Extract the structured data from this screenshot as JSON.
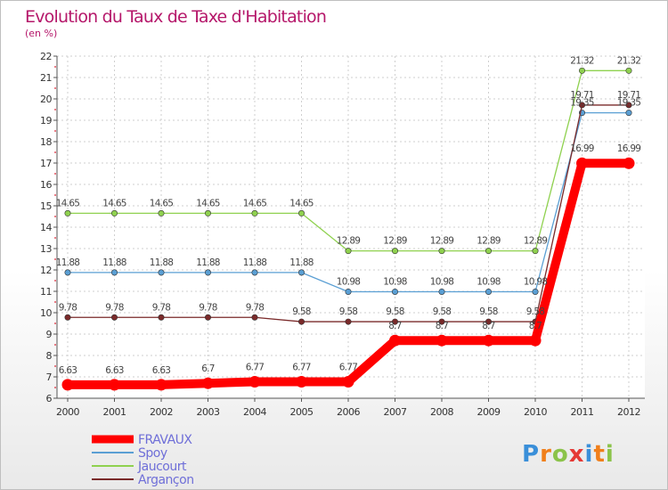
{
  "chart_data": {
    "type": "line",
    "title": "Evolution du Taux de Taxe d'Habitation",
    "subtitle": "(en %)",
    "x": [
      "2000",
      "2001",
      "2002",
      "2003",
      "2004",
      "2005",
      "2006",
      "2007",
      "2008",
      "2009",
      "2010",
      "2011",
      "2012"
    ],
    "ylim": [
      6,
      22
    ],
    "yticks": [
      6,
      7,
      8,
      9,
      10,
      11,
      12,
      13,
      14,
      15,
      16,
      17,
      18,
      19,
      20,
      21,
      22
    ],
    "grid": true,
    "legend_position": "bottom-left",
    "series": [
      {
        "name": "FRAVAUX",
        "color": "#ff0000",
        "values": [
          6.63,
          6.63,
          6.63,
          6.7,
          6.77,
          6.77,
          6.77,
          8.7,
          8.7,
          8.7,
          8.7,
          16.99,
          16.99
        ]
      },
      {
        "name": "Spoy",
        "color": "#5a9fd4",
        "values": [
          11.88,
          11.88,
          11.88,
          11.88,
          11.88,
          11.88,
          10.98,
          10.98,
          10.98,
          10.98,
          10.98,
          19.35,
          19.35
        ]
      },
      {
        "name": "Jaucourt",
        "color": "#8fd14f",
        "values": [
          14.65,
          14.65,
          14.65,
          14.65,
          14.65,
          14.65,
          12.89,
          12.89,
          12.89,
          12.89,
          12.89,
          21.32,
          21.32
        ]
      },
      {
        "name": "Argançon",
        "color": "#7a2a2a",
        "values": [
          9.78,
          9.78,
          9.78,
          9.78,
          9.78,
          9.58,
          9.58,
          9.58,
          9.58,
          9.58,
          9.58,
          19.71,
          19.71
        ]
      }
    ],
    "data_labels": [
      [
        "6.63",
        "6.63",
        "6.63",
        "6.7",
        "6.77",
        "6.77",
        "6.77",
        "8.7",
        "8.7",
        "8.7",
        "8.7",
        "16.99",
        "16.99"
      ],
      [
        "11.88",
        "11.88",
        "11.88",
        "11.88",
        "11.88",
        "11.88",
        "10.98",
        "10.98",
        "10.98",
        "10.98",
        "10.98",
        "19.35",
        "19.35"
      ],
      [
        "14.65",
        "14.65",
        "14.65",
        "14.65",
        "14.65",
        "14.65",
        "12.89",
        "12.89",
        "12.89",
        "12.89",
        "12.89",
        "21.32",
        "21.32"
      ],
      [
        "9.78",
        "9.78",
        "9.78",
        "9.78",
        "9.78",
        "9.58",
        "9.58",
        "9.58",
        "9.58",
        "9.58",
        "9.58",
        "19.71",
        "19.71"
      ]
    ]
  },
  "logo": {
    "text": "Proxiti",
    "letter_colors": [
      "#3a8fd9",
      "#f07f1b",
      "#8bc34a",
      "#e53935",
      "#3a8fd9",
      "#f07f1b",
      "#8bc34a"
    ]
  }
}
